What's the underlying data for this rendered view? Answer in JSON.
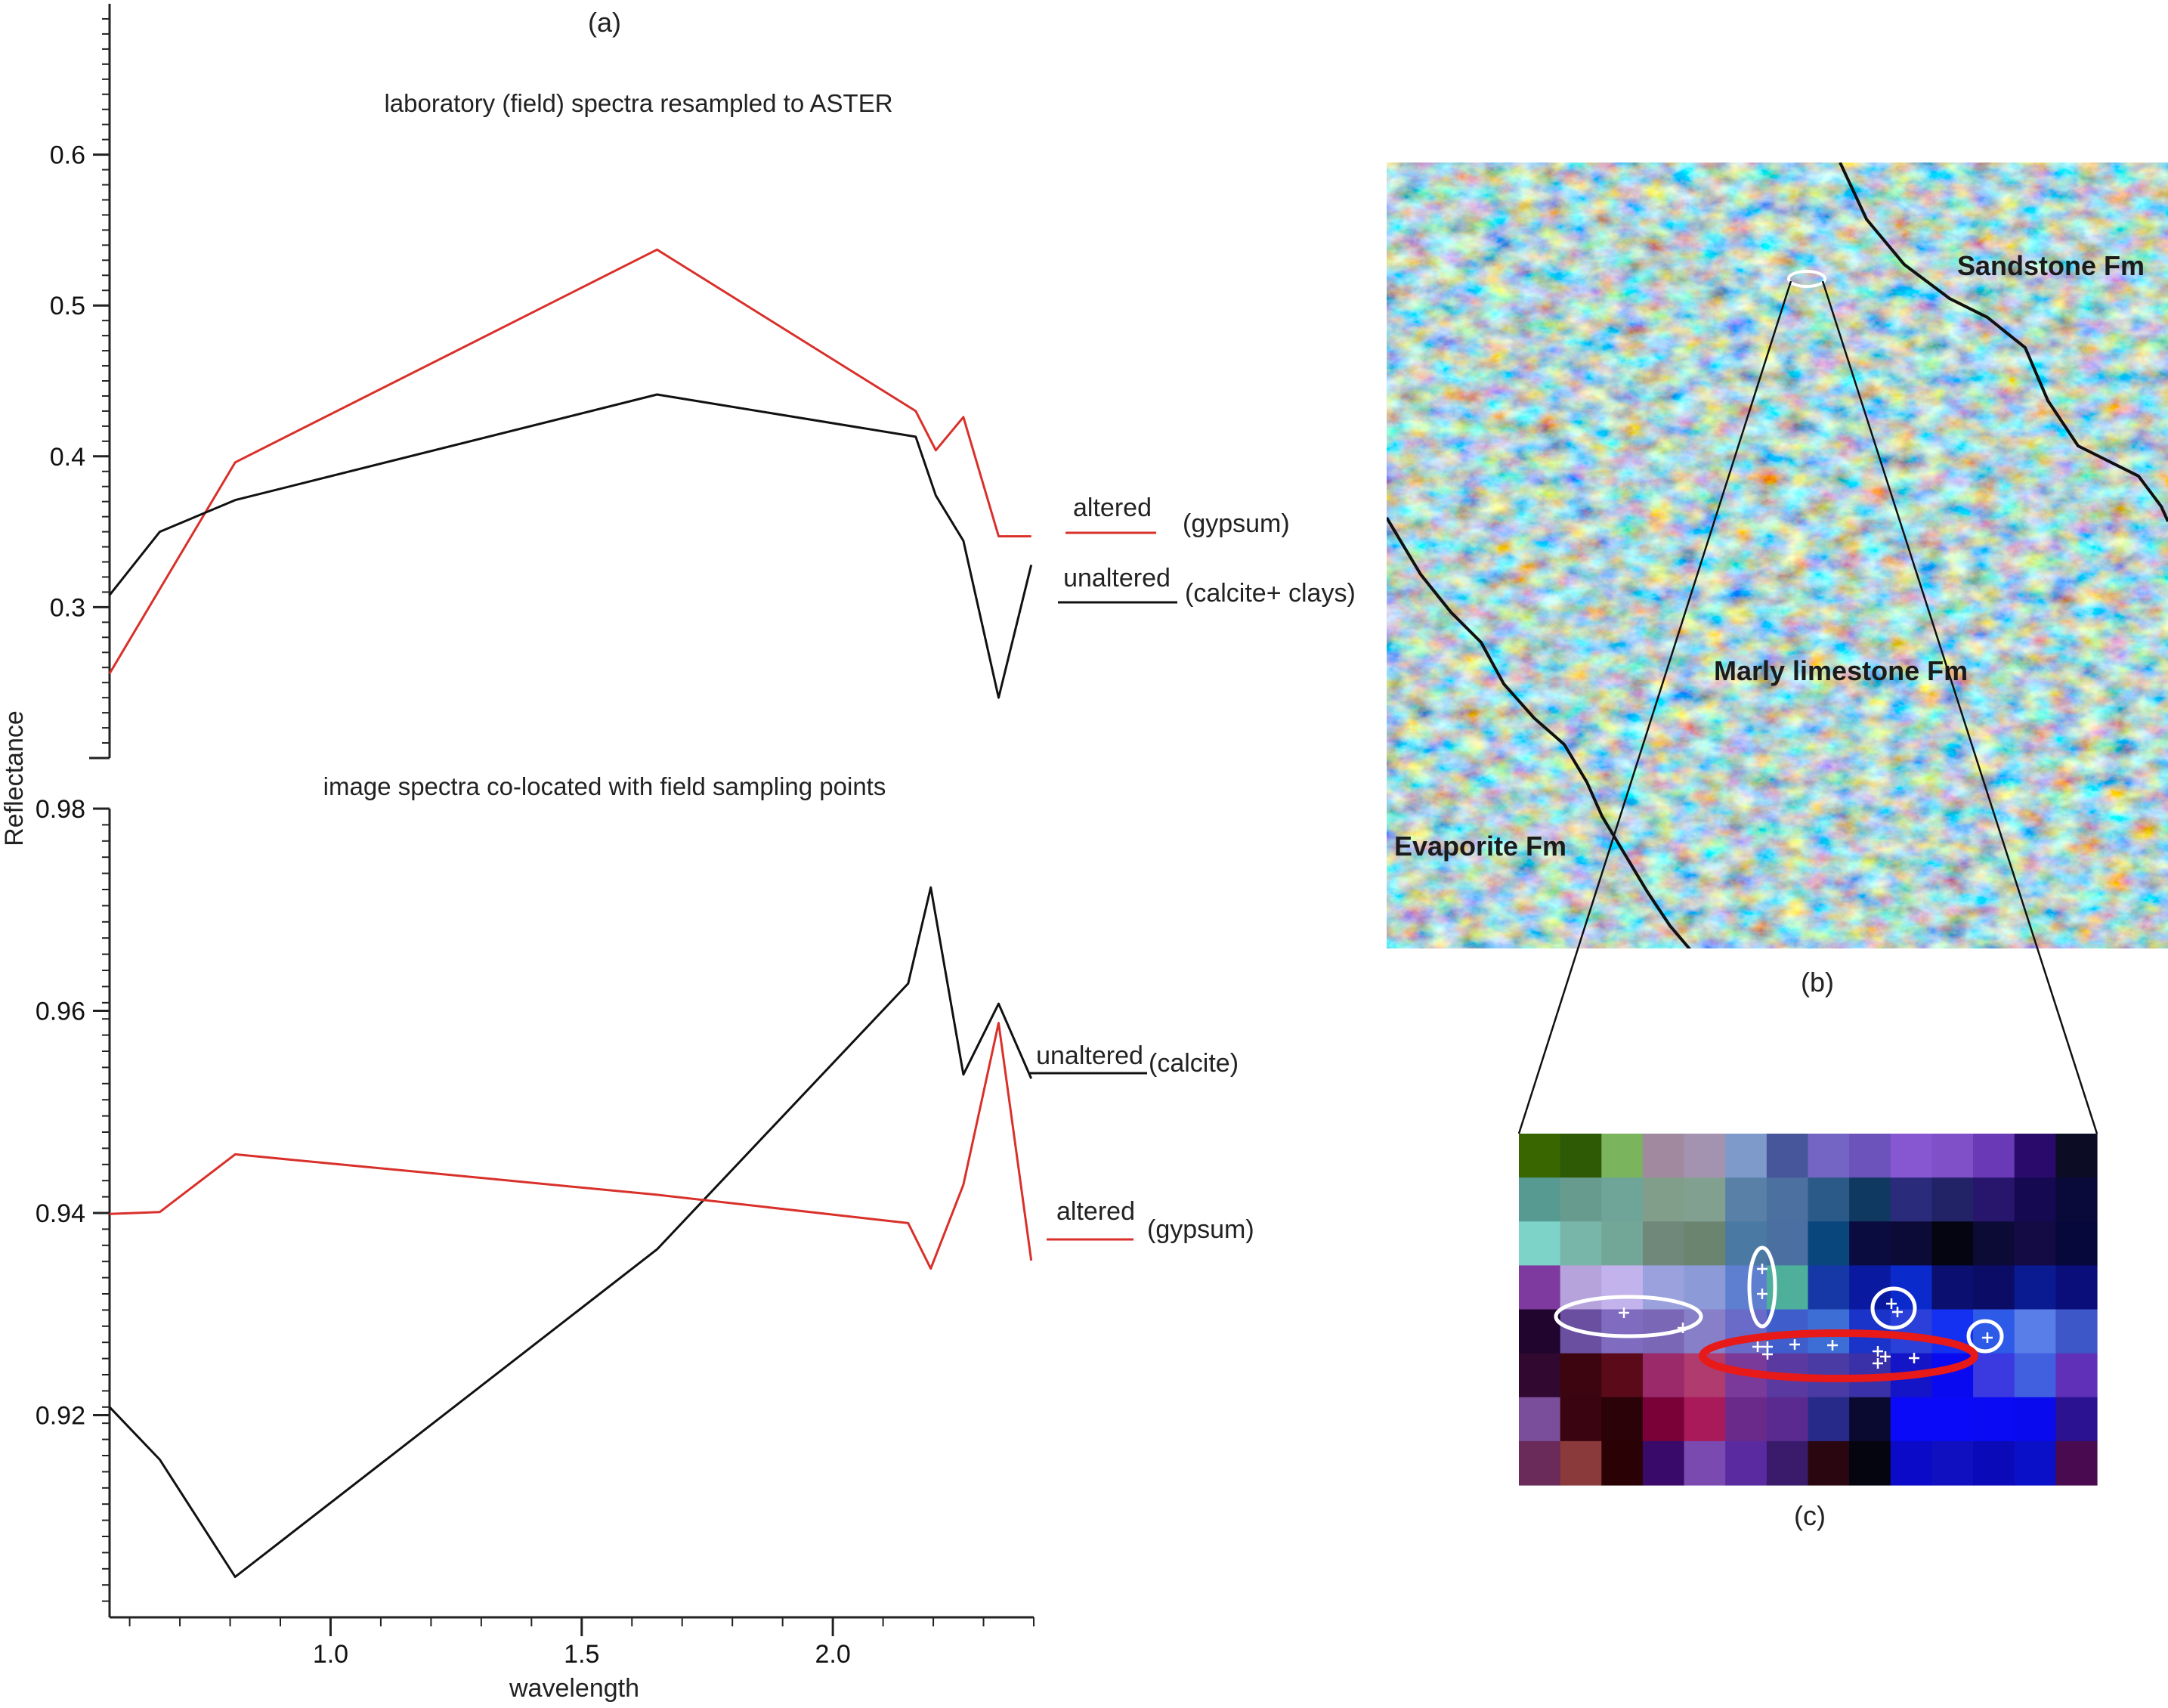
{
  "figure": {
    "panel_a_label": "(a)",
    "panel_b_label": "(b)",
    "panel_c_label": "(c)",
    "ylabel": "Reflectance",
    "xlabel": "wavelength"
  },
  "colors": {
    "altered": "#d9302a",
    "unaltered": "#111111"
  },
  "chart_data": [
    {
      "type": "line",
      "title": "laboratory (field) spectra resampled to ASTER",
      "x_ticks": [
        "1.0",
        "1.5",
        "2.0"
      ],
      "y_ticks": [
        "0.6",
        "0.5",
        "0.4",
        "0.3"
      ],
      "xlim": [
        0.56,
        2.4
      ],
      "ylim": [
        0.2,
        0.7
      ],
      "series": [
        {
          "name": "altered",
          "legend_note": "(gypsum)",
          "color": "#d9302a",
          "x": [
            0.56,
            0.81,
            1.65,
            2.165,
            2.205,
            2.26,
            2.33,
            2.395
          ],
          "y": [
            0.256,
            0.396,
            0.537,
            0.43,
            0.404,
            0.426,
            0.347,
            0.347
          ]
        },
        {
          "name": "unaltered",
          "legend_note": "(calcite+ clays)",
          "color": "#111111",
          "x": [
            0.56,
            0.66,
            0.81,
            1.65,
            2.165,
            2.205,
            2.26,
            2.33,
            2.395
          ],
          "y": [
            0.308,
            0.35,
            0.371,
            0.441,
            0.413,
            0.374,
            0.344,
            0.24,
            0.328
          ]
        }
      ]
    },
    {
      "type": "line",
      "title": "image spectra co-located with field sampling points",
      "x_ticks": [
        "1.0",
        "1.5",
        "2.0"
      ],
      "y_ticks": [
        "0.98",
        "0.96",
        "0.94",
        "0.92"
      ],
      "xlim": [
        0.56,
        2.4
      ],
      "ylim": [
        0.9,
        0.98
      ],
      "series": [
        {
          "name": "unaltered",
          "legend_note": "(calcite)",
          "color": "#111111",
          "x": [
            0.56,
            0.66,
            0.81,
            1.65,
            2.15,
            2.195,
            2.26,
            2.33,
            2.395
          ],
          "y": [
            0.9208,
            0.9156,
            0.904,
            0.9364,
            0.9627,
            0.9722,
            0.9537,
            0.9607,
            0.9533
          ]
        },
        {
          "name": "altered",
          "legend_note": "(gypsum)",
          "color": "#d9302a",
          "x": [
            0.56,
            0.66,
            0.81,
            1.65,
            2.15,
            2.195,
            2.26,
            2.33,
            2.395
          ],
          "y": [
            0.9399,
            0.9401,
            0.9458,
            0.9418,
            0.939,
            0.9345,
            0.9428,
            0.9588,
            0.9353
          ]
        }
      ]
    }
  ],
  "map_b": {
    "labels": [
      "Sandstone Fm",
      "Marly limestone Fm",
      "Evaporite Fm"
    ]
  },
  "grid_c": {
    "rows": 8,
    "cols": 14,
    "colors": [
      [
        "#3a6600",
        "#2e5a06",
        "#7ab45c",
        "#a189a0",
        "#a493b0",
        "#7e9acb",
        "#47569a",
        "#7464c3",
        "#6c52bb",
        "#8757d2",
        "#8050c8",
        "#6a39b5",
        "#2a0b6b",
        "#0d0c25"
      ],
      [
        "#569a91",
        "#679b8e",
        "#6fa599",
        "#809e8a",
        "#82a090",
        "#5980a7",
        "#4c70a0",
        "#2c5a88",
        "#0f3960",
        "#2a2b7a",
        "#222266",
        "#28166c",
        "#150a52",
        "#0a0a3a"
      ],
      [
        "#7dd3c8",
        "#78b6aa",
        "#72a696",
        "#6f887a",
        "#6b8470",
        "#4a7aa4",
        "#4a6fa0",
        "#09467c",
        "#0a0b3e",
        "#0c0a36",
        "#050512",
        "#0b0b36",
        "#140a44",
        "#06073a"
      ],
      [
        "#7f3aa0",
        "#b7a3dc",
        "#c3b3ec",
        "#9aa1dc",
        "#8c9bd8",
        "#5e7ed0",
        "#4eb09a",
        "#1638a6",
        "#0a1aa0",
        "#0a2acb",
        "#0b0f70",
        "#0b0c66",
        "#0a1a90",
        "#0a0e7a"
      ],
      [
        "#22052e",
        "#6a4fa0",
        "#7f6cc0",
        "#7a68b6",
        "#8780c8",
        "#6a6ac8",
        "#3f5ecc",
        "#3d6ed6",
        "#1a33c8",
        "#2a40d8",
        "#1430f0",
        "#2e5ae8",
        "#5a7ee8",
        "#3d56c8"
      ],
      [
        "#300830",
        "#3d0510",
        "#5a0a18",
        "#9a2a6a",
        "#b03b6e",
        "#7a3a9a",
        "#5a3aa0",
        "#4a3aa4",
        "#3a30a8",
        "#1515c8",
        "#0a0af0",
        "#3a3ae0",
        "#4060e0",
        "#6030b8"
      ],
      [
        "#7a4e9a",
        "#3a0510",
        "#2a0208",
        "#7a0038",
        "#a81a5a",
        "#6a2a8a",
        "#5a2a90",
        "#282a8a",
        "#0a0a30",
        "#0a0af8",
        "#0a0af8",
        "#0a0af5",
        "#0a0aee",
        "#2a1290"
      ],
      [
        "#6a2a5a",
        "#8a3a3a",
        "#2a0205",
        "#3a0a6a",
        "#7a4ab0",
        "#5a2aa0",
        "#3a1a6a",
        "#2a0610",
        "#050510",
        "#0a0ac8",
        "#1010c0",
        "#0a0ab8",
        "#0a10c8",
        "#4a0a50"
      ]
    ]
  }
}
